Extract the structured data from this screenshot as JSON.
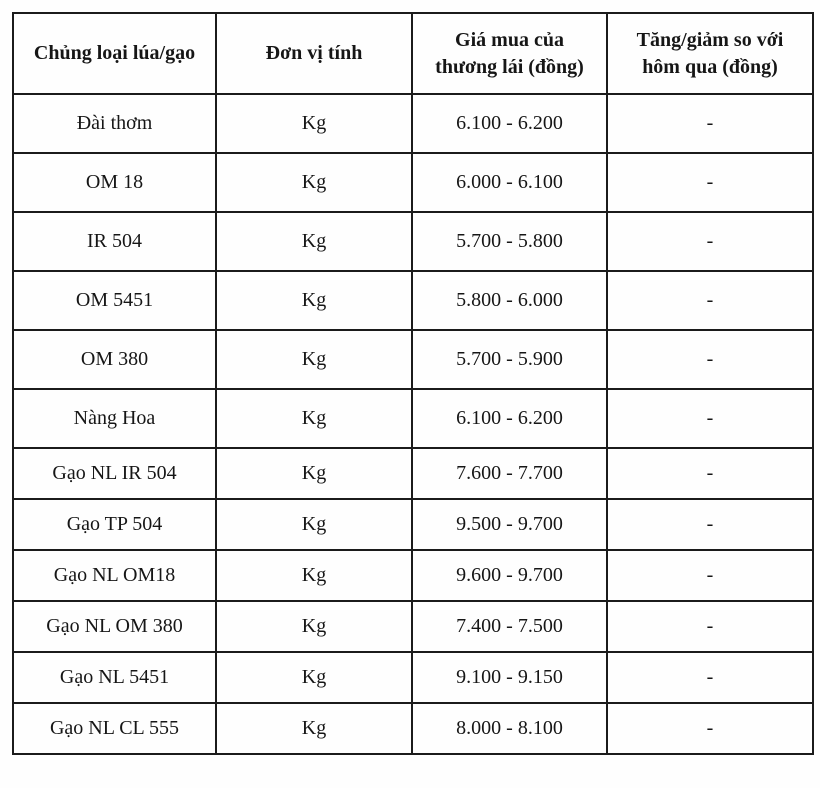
{
  "table": {
    "headers": [
      "Chủng loại lúa/gạo",
      "Đơn vị tính",
      "Giá mua của\nthương lái (đồng)",
      "Tăng/giảm so với\nhôm qua (đồng)"
    ],
    "rows": [
      {
        "type": "Đài thơm",
        "unit": "Kg",
        "price": "6.100 - 6.200",
        "change": "-"
      },
      {
        "type": "OM 18",
        "unit": "Kg",
        "price": "6.000 - 6.100",
        "change": "-"
      },
      {
        "type": "IR 504",
        "unit": "Kg",
        "price": "5.700 - 5.800",
        "change": "-"
      },
      {
        "type": "OM 5451",
        "unit": "Kg",
        "price": "5.800 - 6.000",
        "change": "-"
      },
      {
        "type": "OM 380",
        "unit": "Kg",
        "price": "5.700 - 5.900",
        "change": "-"
      },
      {
        "type": "Nàng Hoa",
        "unit": "Kg",
        "price": "6.100 - 6.200",
        "change": "-"
      },
      {
        "type": "Gạo NL IR 504",
        "unit": "Kg",
        "price": "7.600 - 7.700",
        "change": "-"
      },
      {
        "type": "Gạo TP 504",
        "unit": "Kg",
        "price": "9.500 - 9.700",
        "change": "-"
      },
      {
        "type": "Gạo NL OM18",
        "unit": "Kg",
        "price": "9.600 - 9.700",
        "change": "-"
      },
      {
        "type": "Gạo NL OM 380",
        "unit": "Kg",
        "price": "7.400 - 7.500",
        "change": "-"
      },
      {
        "type": "Gạo NL 5451",
        "unit": "Kg",
        "price": "9.100 - 9.150",
        "change": "-"
      },
      {
        "type": "Gạo NL CL 555",
        "unit": "Kg",
        "price": "8.000 - 8.100",
        "change": "-"
      }
    ],
    "border_color": "#1b1b1b",
    "text_color": "#161616"
  }
}
